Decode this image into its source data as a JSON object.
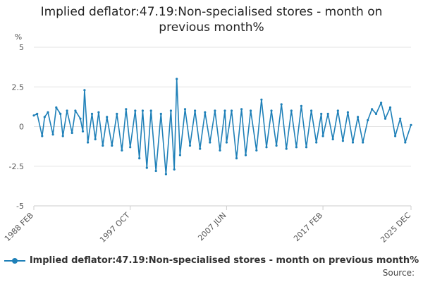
{
  "title_line1": "Implied deflator:47.19:Non-specialised stores - month on",
  "title_line2": "previous month%",
  "source_label": "Source:",
  "chart_data": {
    "type": "line",
    "title": "Implied deflator:47.19:Non-specialised stores - month on previous month%",
    "ylabel": "%",
    "xlabel": "",
    "ylim": [
      -5,
      5
    ],
    "y_ticks": [
      5,
      2.5,
      0,
      -2.5,
      -5
    ],
    "y_tick_labels": [
      "5",
      "2.5",
      "0",
      "-2.5",
      "-5"
    ],
    "x_range": [
      "1988 FEB",
      "2025 DEC"
    ],
    "x_tick_labels": [
      "1988 FEB",
      "1997 OCT",
      "2007 JUN",
      "2017 FEB",
      "2025 DEC"
    ],
    "grid": true,
    "legend_position": "bottom",
    "color": "#1f80b8",
    "series": [
      {
        "name": "Implied deflator:47.19:Non-specialised stores - month on previous month%",
        "points": [
          [
            "1988 FEB",
            0.7
          ],
          [
            "1988 JUN",
            0.8
          ],
          [
            "1988 DEC",
            -0.6
          ],
          [
            "1989 MAR",
            0.6
          ],
          [
            "1989 JUL",
            0.9
          ],
          [
            "1990 JAN",
            -0.5
          ],
          [
            "1990 MAY",
            1.2
          ],
          [
            "1990 OCT",
            0.8
          ],
          [
            "1991 JAN",
            -0.6
          ],
          [
            "1991 JUN",
            1.0
          ],
          [
            "1991 DEC",
            -0.4
          ],
          [
            "1992 APR",
            1.0
          ],
          [
            "1992 OCT",
            0.5
          ],
          [
            "1993 JAN",
            -0.3
          ],
          [
            "1993 MAR",
            2.3
          ],
          [
            "1993 JUL",
            -1.0
          ],
          [
            "1993 DEC",
            0.8
          ],
          [
            "1994 APR",
            -0.8
          ],
          [
            "1994 AUG",
            0.9
          ],
          [
            "1995 JAN",
            -1.2
          ],
          [
            "1995 JUN",
            0.6
          ],
          [
            "1995 DEC",
            -1.2
          ],
          [
            "1996 JUN",
            0.8
          ],
          [
            "1996 DEC",
            -1.5
          ],
          [
            "1997 MAY",
            1.1
          ],
          [
            "1997 OCT",
            -1.3
          ],
          [
            "1998 APR",
            1.0
          ],
          [
            "1998 SEP",
            -2.0
          ],
          [
            "1999 JAN",
            1.0
          ],
          [
            "1999 JUN",
            -2.6
          ],
          [
            "1999 NOV",
            1.0
          ],
          [
            "2000 MAY",
            -2.8
          ],
          [
            "2000 NOV",
            0.8
          ],
          [
            "2001 MAY",
            -3.0
          ],
          [
            "2001 NOV",
            1.0
          ],
          [
            "2002 MAR",
            -2.7
          ],
          [
            "2002 JUN",
            3.0
          ],
          [
            "2002 OCT",
            -1.8
          ],
          [
            "2003 APR",
            1.1
          ],
          [
            "2003 OCT",
            -1.2
          ],
          [
            "2004 APR",
            1.0
          ],
          [
            "2004 OCT",
            -1.4
          ],
          [
            "2005 APR",
            0.9
          ],
          [
            "2005 OCT",
            -1.0
          ],
          [
            "2006 APR",
            1.0
          ],
          [
            "2006 OCT",
            -1.5
          ],
          [
            "2007 APR",
            1.0
          ],
          [
            "2007 JUN",
            -1.0
          ],
          [
            "2007 DEC",
            1.0
          ],
          [
            "2008 JUN",
            -2.0
          ],
          [
            "2008 DEC",
            1.1
          ],
          [
            "2009 MAY",
            -1.8
          ],
          [
            "2009 NOV",
            1.0
          ],
          [
            "2010 JUN",
            -1.5
          ],
          [
            "2010 DEC",
            1.7
          ],
          [
            "2011 JUN",
            -1.3
          ],
          [
            "2011 DEC",
            1.0
          ],
          [
            "2012 JUN",
            -1.2
          ],
          [
            "2012 DEC",
            1.4
          ],
          [
            "2013 JUN",
            -1.4
          ],
          [
            "2013 DEC",
            1.0
          ],
          [
            "2014 JUN",
            -1.3
          ],
          [
            "2014 DEC",
            1.3
          ],
          [
            "2015 JUN",
            -1.3
          ],
          [
            "2015 DEC",
            1.0
          ],
          [
            "2016 JUN",
            -1.0
          ],
          [
            "2016 DEC",
            0.8
          ],
          [
            "2017 FEB",
            -0.6
          ],
          [
            "2017 AUG",
            0.8
          ],
          [
            "2018 FEB",
            -0.8
          ],
          [
            "2018 AUG",
            1.0
          ],
          [
            "2019 FEB",
            -0.9
          ],
          [
            "2019 AUG",
            0.9
          ],
          [
            "2020 FEB",
            -1.0
          ],
          [
            "2020 AUG",
            0.6
          ],
          [
            "2021 FEB",
            -1.0
          ],
          [
            "2021 AUG",
            0.4
          ],
          [
            "2022 JAN",
            1.1
          ],
          [
            "2022 JUN",
            0.8
          ],
          [
            "2022 DEC",
            1.5
          ],
          [
            "2023 MAY",
            0.5
          ],
          [
            "2023 NOV",
            1.2
          ],
          [
            "2024 MAY",
            -0.6
          ],
          [
            "2024 NOV",
            0.5
          ],
          [
            "2025 MAY",
            -1.0
          ],
          [
            "2025 DEC",
            0.1
          ]
        ]
      }
    ]
  }
}
